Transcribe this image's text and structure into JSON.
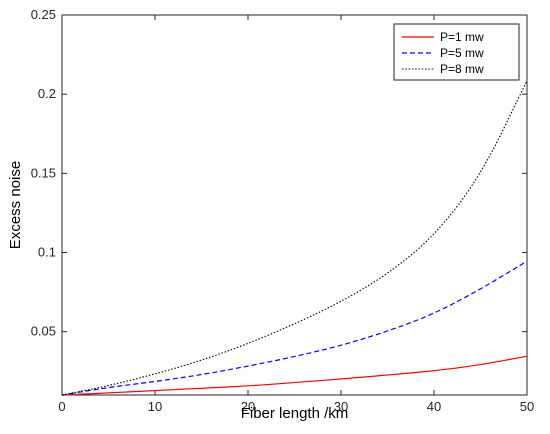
{
  "chart_data": {
    "type": "line",
    "title": "",
    "xlabel": "Fiber length /km",
    "ylabel": "Excess noise",
    "xlim": [
      0,
      50
    ],
    "ylim": [
      0.01,
      0.25
    ],
    "xticks": [
      0,
      10,
      20,
      30,
      40,
      50
    ],
    "yticks": [
      0.05,
      0.1,
      0.15,
      0.2,
      0.25
    ],
    "ytick_labels": [
      "0.05",
      "0.1",
      "0.15",
      "0.2",
      "0.25"
    ],
    "grid": false,
    "legend_position": "top-right",
    "x": [
      0,
      5,
      10,
      15,
      20,
      25,
      30,
      35,
      40,
      45,
      50
    ],
    "series": [
      {
        "name": "P=1 mw",
        "color": "#ff0000",
        "style": "solid",
        "values": [
          0.01,
          0.0113,
          0.0128,
          0.0142,
          0.0157,
          0.0178,
          0.0201,
          0.0226,
          0.0252,
          0.029,
          0.0345
        ]
      },
      {
        "name": "P=5 mw",
        "color": "#0000ff",
        "style": "dashed",
        "values": [
          0.01,
          0.0148,
          0.0185,
          0.0228,
          0.0282,
          0.0342,
          0.0412,
          0.0502,
          0.0612,
          0.0768,
          0.0945
        ]
      },
      {
        "name": "P=8 mw",
        "color": "#000000",
        "style": "dotted",
        "values": [
          0.01,
          0.0158,
          0.0232,
          0.0318,
          0.0424,
          0.0548,
          0.0688,
          0.0862,
          0.1102,
          0.1482,
          0.2085
        ]
      }
    ]
  }
}
